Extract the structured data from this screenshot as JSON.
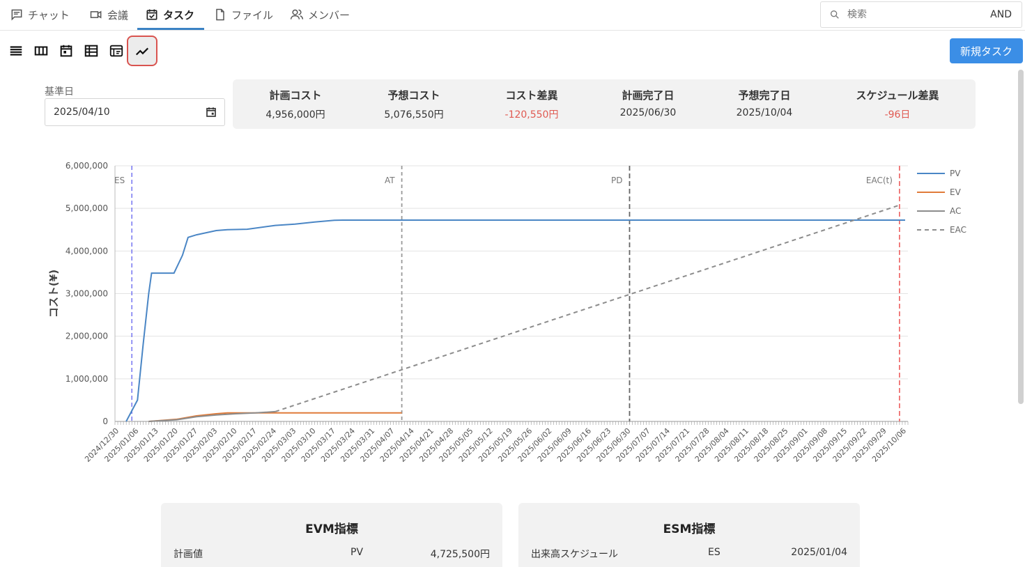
{
  "tabs": [
    {
      "label": "チャット",
      "icon": "chat-icon"
    },
    {
      "label": "会議",
      "icon": "video-icon"
    },
    {
      "label": "タスク",
      "icon": "calendar-check-icon",
      "active": true
    },
    {
      "label": "ファイル",
      "icon": "file-icon"
    },
    {
      "label": "メンバー",
      "icon": "members-icon"
    }
  ],
  "search": {
    "placeholder": "検索",
    "mode": "AND"
  },
  "toolbar": {
    "views": [
      "list-view-icon",
      "board-view-icon",
      "calendar-view-icon",
      "table-view-icon",
      "timeline-view-icon",
      "chart-view-icon"
    ],
    "active_view": "chart-view-icon",
    "new_task_label": "新規タスク"
  },
  "basis": {
    "label": "基準日",
    "value": "2025/04/10"
  },
  "summary": [
    {
      "header": "計画コスト",
      "value": "4,956,000円",
      "negative": false
    },
    {
      "header": "予想コスト",
      "value": "5,076,550円",
      "negative": false
    },
    {
      "header": "コスト差異",
      "value": "-120,550円",
      "negative": true
    },
    {
      "header": "計画完了日",
      "value": "2025/06/30",
      "negative": false
    },
    {
      "header": "予想完了日",
      "value": "2025/10/04",
      "negative": false
    },
    {
      "header": "スケジュール差異",
      "value": "-96日",
      "negative": true
    }
  ],
  "colors": {
    "pv": "#4a86c5",
    "ev": "#e07b39",
    "ac": "#8c8c8c",
    "eac": "#8c8c8c",
    "es": "#6b6bf0",
    "eact": "#ef6f6f",
    "accent": "#3b8ee6"
  },
  "chart_data": {
    "type": "line",
    "ylabel": "コスト(¥)",
    "ylim": [
      0,
      6000000
    ],
    "y_ticks": [
      "6,000,000",
      "5,000,000",
      "4,000,000",
      "3,000,000",
      "2,000,000",
      "1,000,000",
      "0"
    ],
    "x_ticks": [
      "2024/12/30",
      "2025/01/06",
      "2025/01/13",
      "2025/01/20",
      "2025/01/27",
      "2025/02/03",
      "2025/02/10",
      "2025/02/17",
      "2025/02/24",
      "2025/03/03",
      "2025/03/10",
      "2025/03/17",
      "2025/03/24",
      "2025/03/31",
      "2025/04/07",
      "2025/04/14",
      "2025/04/21",
      "2025/04/28",
      "2025/05/05",
      "2025/05/12",
      "2025/05/19",
      "2025/05/26",
      "2025/06/02",
      "2025/06/09",
      "2025/06/16",
      "2025/06/23",
      "2025/06/30",
      "2025/07/07",
      "2025/07/14",
      "2025/07/21",
      "2025/07/28",
      "2025/08/04",
      "2025/08/11",
      "2025/08/18",
      "2025/08/25",
      "2025/09/01",
      "2025/09/08",
      "2025/09/15",
      "2025/09/22",
      "2025/09/29",
      "2025/10/06"
    ],
    "legend": [
      "PV",
      "EV",
      "AC",
      "EAC"
    ],
    "legend_position": "right",
    "markers": [
      {
        "label": "ES",
        "date": "2025/01/04",
        "key": "es"
      },
      {
        "label": "AT",
        "date": "2025/04/10",
        "key": "at"
      },
      {
        "label": "PD",
        "date": "2025/06/30",
        "key": "pd"
      },
      {
        "label": "EAC(t)",
        "date": "2025/10/04",
        "key": "eact"
      }
    ],
    "series": [
      {
        "name": "PV",
        "points": [
          [
            "2025/01/02",
            0
          ],
          [
            "2025/01/06",
            500000
          ],
          [
            "2025/01/08",
            1800000
          ],
          [
            "2025/01/10",
            3000000
          ],
          [
            "2025/01/11",
            3480000
          ],
          [
            "2025/01/19",
            3480000
          ],
          [
            "2025/01/22",
            3900000
          ],
          [
            "2025/01/24",
            4320000
          ],
          [
            "2025/01/27",
            4380000
          ],
          [
            "2025/02/03",
            4480000
          ],
          [
            "2025/02/07",
            4500000
          ],
          [
            "2025/02/14",
            4510000
          ],
          [
            "2025/02/24",
            4600000
          ],
          [
            "2025/03/03",
            4630000
          ],
          [
            "2025/03/10",
            4680000
          ],
          [
            "2025/03/17",
            4720000
          ],
          [
            "2025/03/20",
            4725500
          ],
          [
            "2025/10/06",
            4725500
          ]
        ]
      },
      {
        "name": "EV",
        "points": [
          [
            "2025/01/10",
            0
          ],
          [
            "2025/01/20",
            50000
          ],
          [
            "2025/01/27",
            130000
          ],
          [
            "2025/02/03",
            180000
          ],
          [
            "2025/02/07",
            200000
          ],
          [
            "2025/02/14",
            200000
          ],
          [
            "2025/04/10",
            200000
          ]
        ]
      },
      {
        "name": "AC",
        "points": [
          [
            "2025/01/10",
            0
          ],
          [
            "2025/01/20",
            40000
          ],
          [
            "2025/01/27",
            110000
          ],
          [
            "2025/02/03",
            150000
          ],
          [
            "2025/02/10",
            180000
          ],
          [
            "2025/02/17",
            200000
          ],
          [
            "2025/02/24",
            230000
          ]
        ]
      },
      {
        "name": "EAC",
        "points": [
          [
            "2025/02/24",
            230000
          ],
          [
            "2025/10/04",
            5076550
          ]
        ]
      }
    ]
  },
  "evm_card": {
    "title": "EVM指標",
    "row_label": "計画値",
    "row_abbr": "PV",
    "row_value": "4,725,500円"
  },
  "esm_card": {
    "title": "ESM指標",
    "row_label": "出来高スケジュール",
    "row_abbr": "ES",
    "row_value": "2025/01/04"
  }
}
